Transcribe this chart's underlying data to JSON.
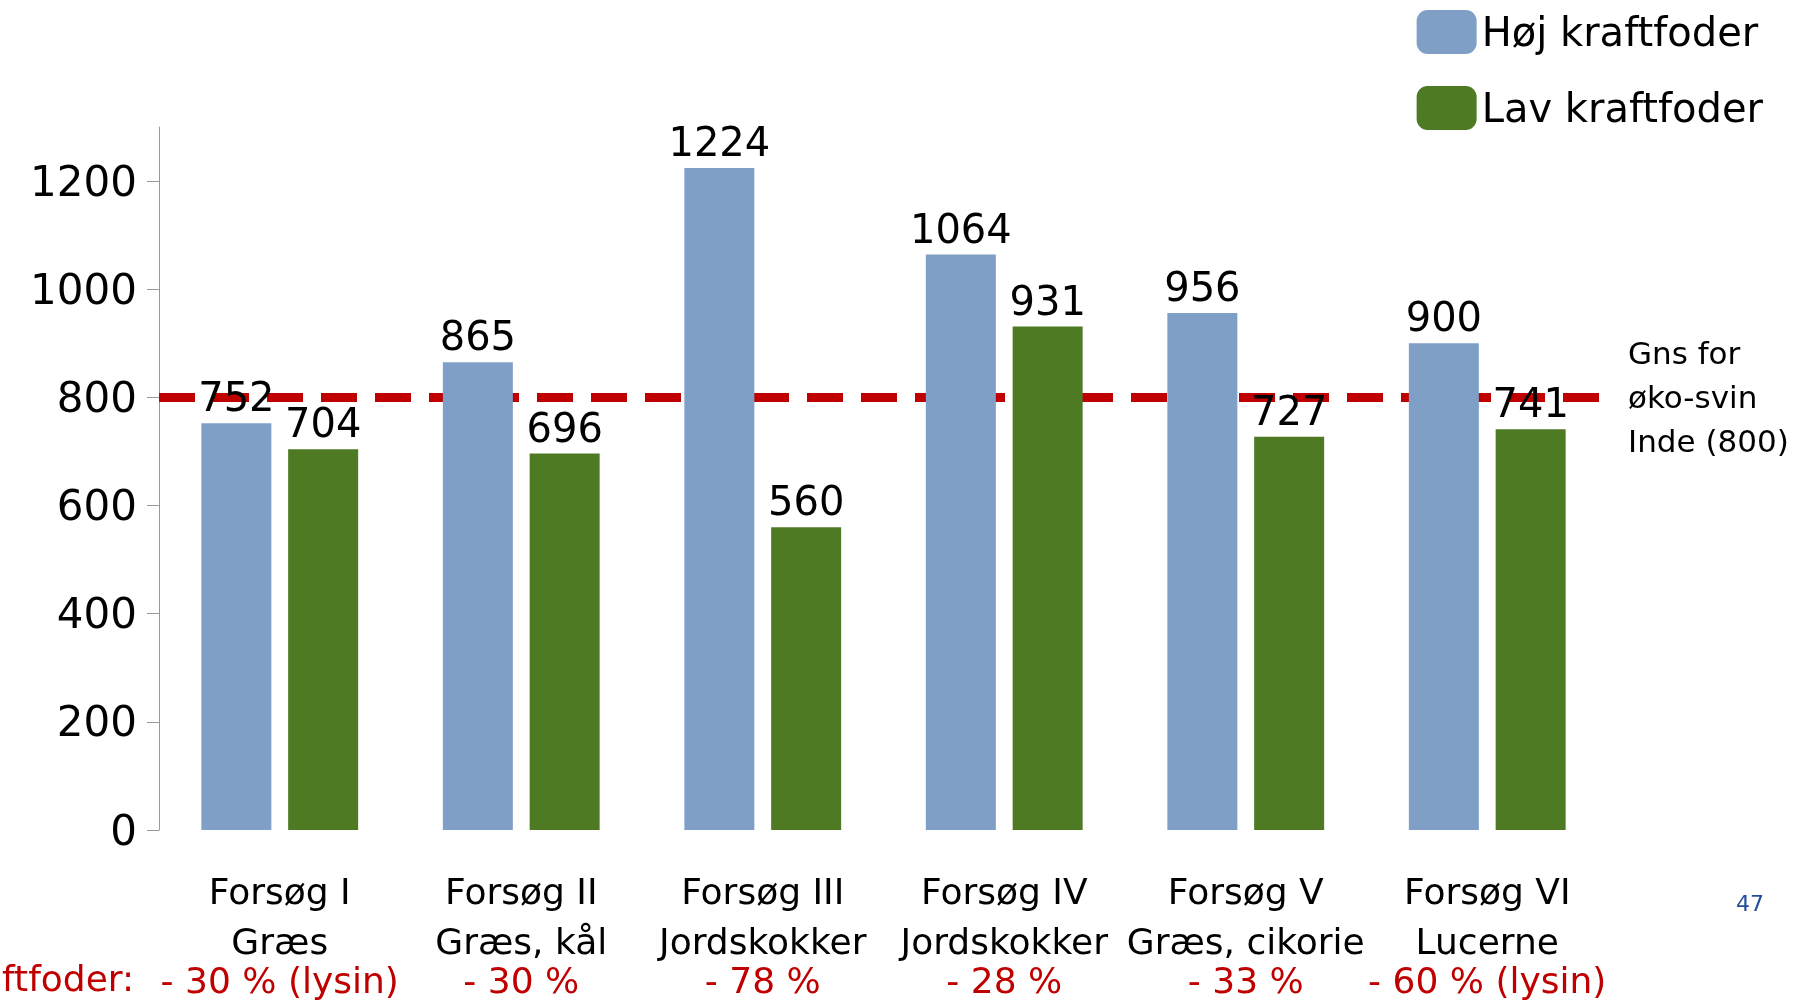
{
  "chart_data": {
    "type": "bar",
    "categories": [
      "Forsøg I\nGræs",
      "Forsøg II\nGræs, kål",
      "Forsøg III\nJordskokker",
      "Forsøg IV\nJordskokker",
      "Forsøg V\nGræs, cikorie",
      "Forsøg VI\nLucerne"
    ],
    "series": [
      {
        "name": "Høj kraftfoder",
        "color": "#7f9fc6",
        "values": [
          752,
          865,
          1224,
          1064,
          956,
          900
        ]
      },
      {
        "name": "Lav kraftfoder",
        "color": "#4e7a24",
        "values": [
          704,
          696,
          560,
          931,
          727,
          741
        ]
      }
    ],
    "ylim": [
      0,
      1300
    ],
    "yticks": [
      0,
      200,
      400,
      600,
      800,
      1000,
      1200
    ],
    "data_labels": true,
    "grid": false,
    "legend": "top right",
    "ref_lines": [
      {
        "axis": "y",
        "value": 800,
        "label": "Gns for\nøko-svin\nInde (800)",
        "color": "#c00000",
        "line_style": "dashed"
      }
    ],
    "annotations": [
      "ftfoder:",
      "47",
      "- 30 % (lysin)",
      "- 30 %",
      "- 78 %",
      "- 28 %",
      "- 33 %",
      "- 60 % (lysin)"
    ]
  }
}
